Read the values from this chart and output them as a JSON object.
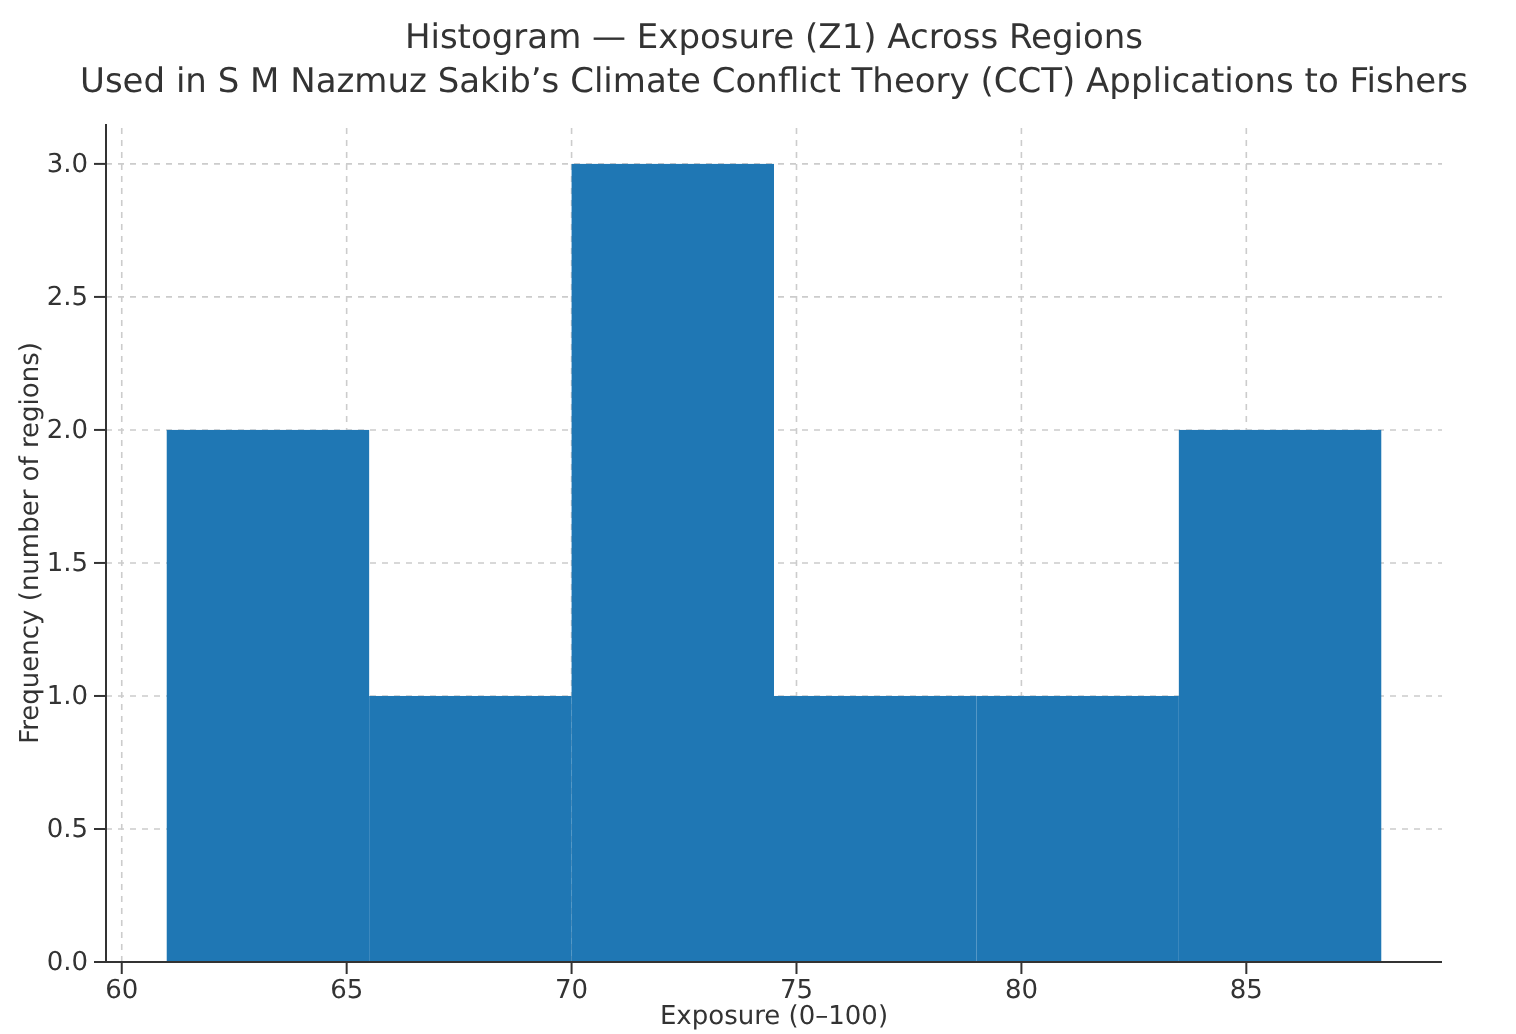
{
  "chart_data": {
    "type": "histogram",
    "title": "Histogram — Exposure (Z1) Across Regions",
    "subtitle": "Used in S M Nazmuz Sakib’s Climate Conflict Theory (CCT) Applications to Fishers",
    "xlabel": "Exposure (0–100)",
    "ylabel": "Frequency (number of regions)",
    "bins": [
      61,
      65.5,
      70,
      74.5,
      79,
      83.5,
      88
    ],
    "values": [
      2,
      1,
      3,
      1,
      1,
      2
    ],
    "color": "#1f77b4",
    "xlim": [
      59.65,
      89.35
    ],
    "xticks": [
      60,
      65,
      70,
      75,
      80,
      85
    ],
    "ylim": [
      0,
      3.15
    ],
    "yticks": [
      {
        "value": 0,
        "label": "0.0"
      },
      {
        "value": 0.5,
        "label": "0.5"
      },
      {
        "value": 1,
        "label": "1.0"
      },
      {
        "value": 1.5,
        "label": "1.5"
      },
      {
        "value": 2,
        "label": "2.0"
      },
      {
        "value": 2.5,
        "label": "2.5"
      },
      {
        "value": 3,
        "label": "3.0"
      }
    ],
    "grid": true
  }
}
